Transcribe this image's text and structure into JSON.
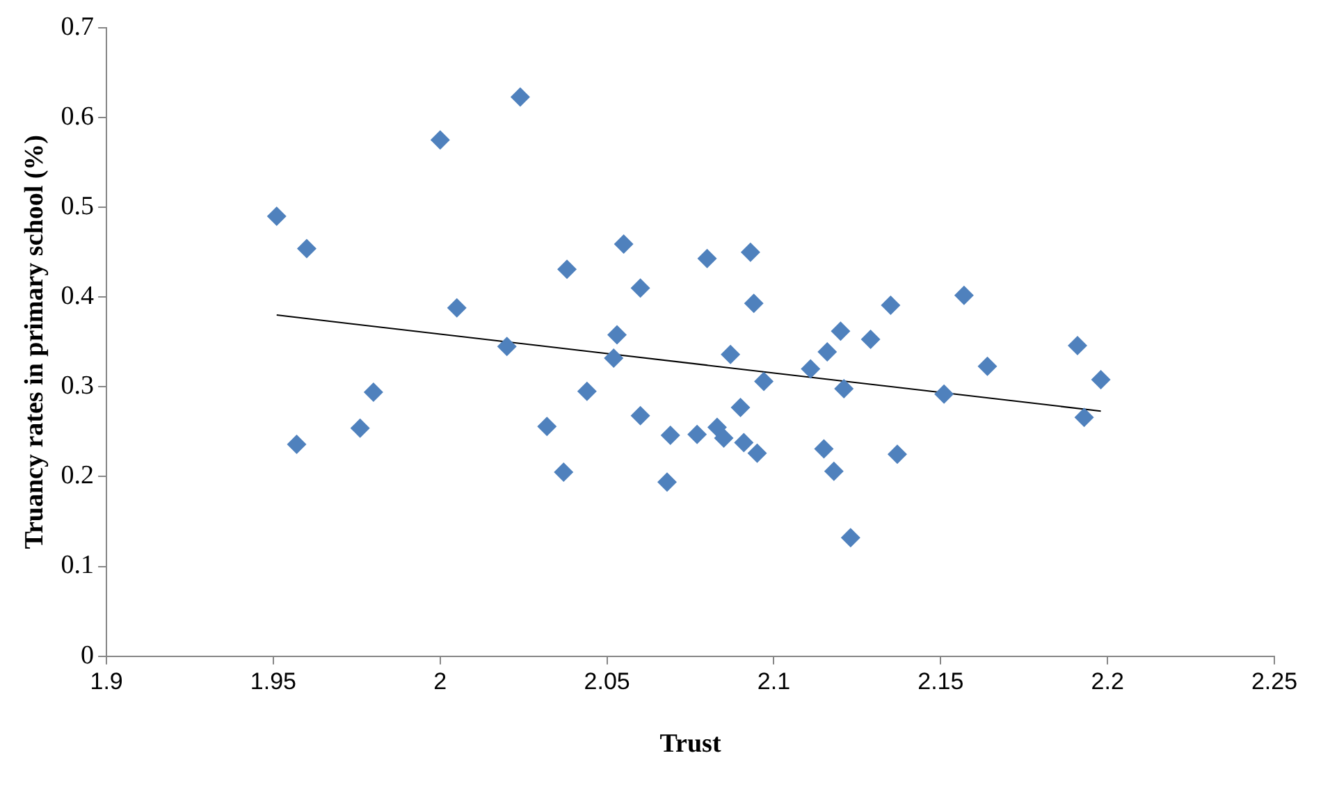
{
  "chart_data": {
    "type": "scatter",
    "xlabel": "Trust",
    "ylabel": "Truancy rates in primary school (%)",
    "xlim": [
      1.9,
      2.25
    ],
    "xticks": [
      1.9,
      1.95,
      2,
      2.05,
      2.1,
      2.15,
      2.2,
      2.25
    ],
    "ylim": [
      0,
      0.7
    ],
    "yticks": [
      0,
      0.1,
      0.2,
      0.3,
      0.4,
      0.5,
      0.6,
      0.7
    ],
    "grid": false,
    "legend": false,
    "series": [
      {
        "type": "scatter",
        "color": "#4f81bd",
        "marker": "diamond",
        "x": [
          1.951,
          1.96,
          1.957,
          1.976,
          1.98,
          2.0,
          2.005,
          2.02,
          2.024,
          2.032,
          2.038,
          2.037,
          2.044,
          2.052,
          2.053,
          2.055,
          2.06,
          2.06,
          2.068,
          2.069,
          2.077,
          2.08,
          2.083,
          2.085,
          2.087,
          2.09,
          2.091,
          2.093,
          2.094,
          2.095,
          2.097,
          2.111,
          2.115,
          2.116,
          2.118,
          2.12,
          2.121,
          2.123,
          2.129,
          2.135,
          2.137,
          2.151,
          2.157,
          2.164,
          2.191,
          2.193,
          2.198
        ],
        "values": [
          0.49,
          0.454,
          0.236,
          0.254,
          0.294,
          0.575,
          0.388,
          0.345,
          0.623,
          0.256,
          0.431,
          0.205,
          0.295,
          0.332,
          0.358,
          0.459,
          0.41,
          0.268,
          0.194,
          0.246,
          0.247,
          0.443,
          0.255,
          0.243,
          0.336,
          0.277,
          0.238,
          0.45,
          0.393,
          0.226,
          0.306,
          0.32,
          0.231,
          0.339,
          0.206,
          0.362,
          0.298,
          0.132,
          0.353,
          0.391,
          0.225,
          0.292,
          0.402,
          0.323,
          0.346,
          0.266,
          0.308
        ]
      },
      {
        "type": "line",
        "color": "#000000",
        "marker": "none",
        "x": [
          1.951,
          2.198
        ],
        "values": [
          0.38,
          0.273
        ]
      }
    ]
  }
}
